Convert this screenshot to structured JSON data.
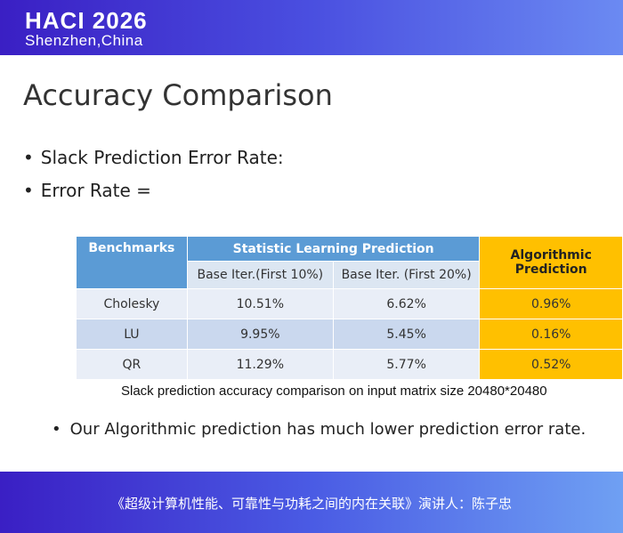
{
  "header": {
    "title": "HACI 2026",
    "subtitle": "Shenzhen,China"
  },
  "slide": {
    "title": "Accuracy Comparison",
    "bullets": [
      "Slack Prediction Error Rate:",
      "Error Rate ="
    ],
    "table": {
      "headers": [
        "Benchmarks",
        "Statistic Learning Prediction",
        "Algorithmic Prediction"
      ],
      "subheaders": [
        "Base Iter.(First 10%)",
        "Base Iter. (First 20%)"
      ],
      "rows": [
        [
          "Cholesky",
          "10.51%",
          "6.62%",
          "0.96%"
        ],
        [
          "LU",
          "9.95%",
          "5.45%",
          "0.16%"
        ],
        [
          "QR",
          "11.29%",
          "5.77%",
          "0.52%"
        ]
      ]
    },
    "caption": "Slack prediction accuracy comparison on input matrix size 20480*20480",
    "note": "Our Algorithmic prediction has much lower prediction error rate."
  },
  "footer": {
    "text": "《超级计算机性能、可靠性与功耗之间的内在关联》演讲人：陈子忠"
  }
}
